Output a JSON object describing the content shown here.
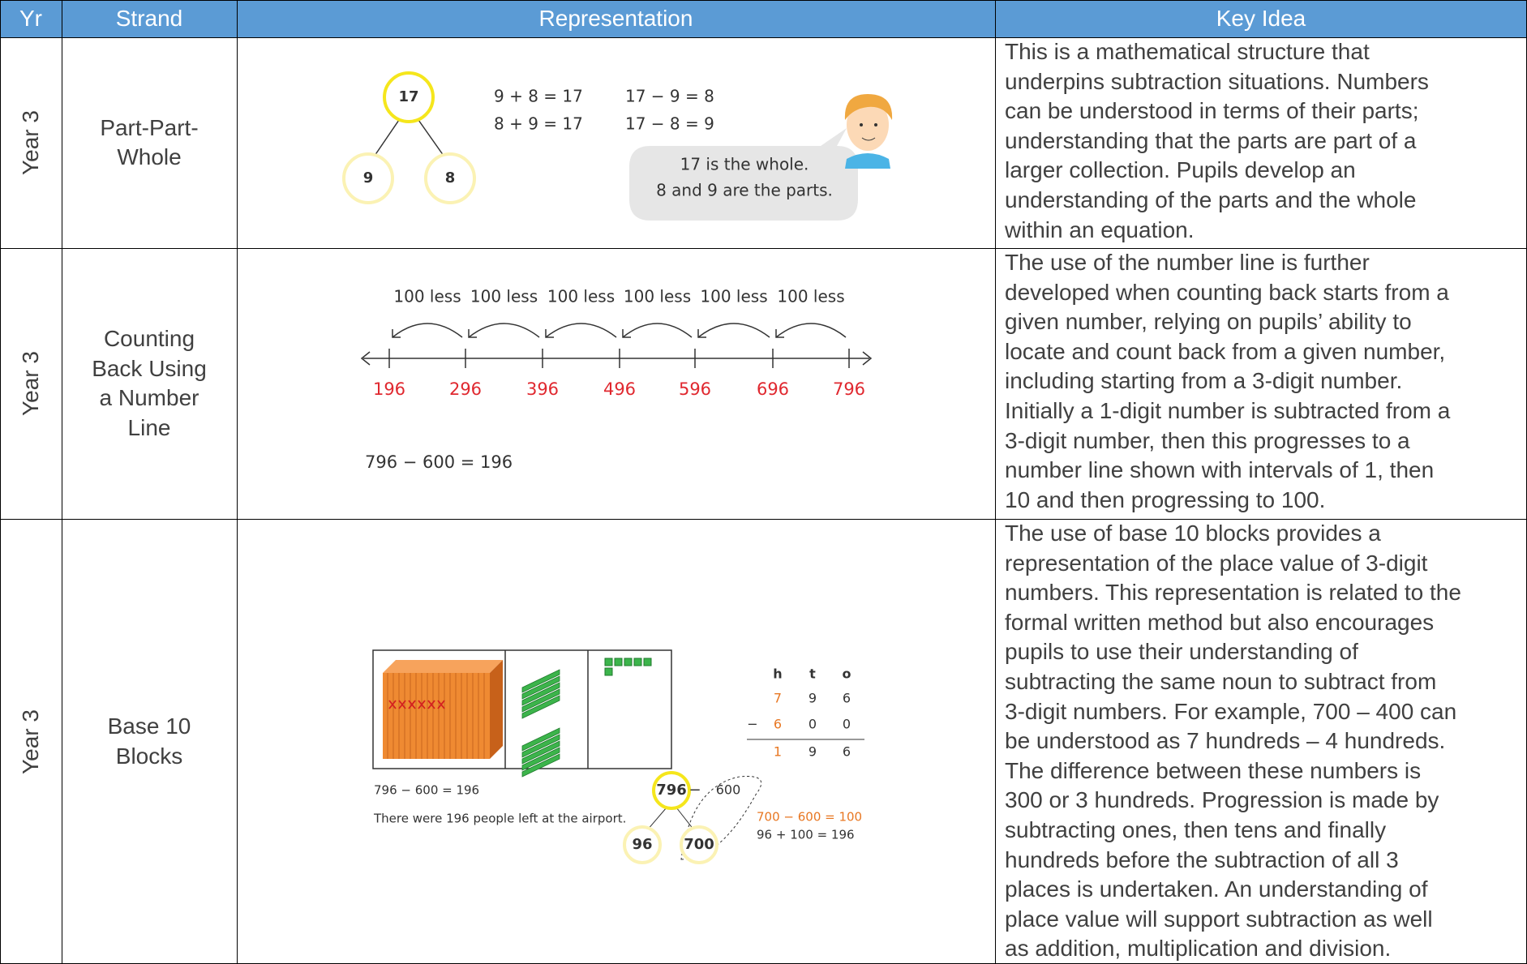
{
  "header": {
    "columns": [
      "Yr",
      "Strand",
      "Representation",
      "Key Idea"
    ]
  },
  "rows": [
    {
      "year": "Year 3",
      "strand": [
        "Part-Part-",
        "Whole"
      ],
      "representation": {
        "whole": "17",
        "parts": [
          "9",
          "8"
        ],
        "equations": [
          "9 + 8 = 17",
          "8 + 9 = 17",
          "17 − 9 = 8",
          "17 − 8 = 9"
        ],
        "speech": [
          "17 is the whole.",
          "8 and 9 are the parts."
        ]
      },
      "key_idea": [
        "This is a mathematical structure that",
        "underpins subtraction situations. Numbers",
        "can be understood in terms of their parts;",
        "understanding that the parts are part of a",
        "larger collection. Pupils develop an",
        "understanding of the parts and the whole",
        "within an equation."
      ]
    },
    {
      "year": "Year 3",
      "strand": [
        "Counting",
        "Back Using",
        "a Number",
        "Line"
      ],
      "representation": {
        "jumps": [
          "100 less",
          "100 less",
          "100 less",
          "100 less",
          "100 less",
          "100 less"
        ],
        "numbers": [
          "196",
          "296",
          "396",
          "496",
          "596",
          "696",
          "796"
        ],
        "equation": "796 − 600 = 196"
      },
      "key_idea": [
        "The use of the number line is further",
        "developed when counting back starts from a",
        "given number, relying on pupils’ ability to",
        "locate and count back from a given number,",
        "including starting from a 3-digit number.",
        "Initially a 1-digit number is subtracted from a",
        "3-digit number, then this progresses to a",
        "number line shown with intervals of 1, then",
        "10 and then progressing to 100."
      ]
    },
    {
      "year": "Year 3",
      "strand": [
        "Base 10",
        "Blocks"
      ],
      "representation": {
        "columns": [
          "h",
          "t",
          "o"
        ],
        "digits": [
          [
            "7",
            "9",
            "6"
          ],
          [
            "6",
            "0",
            "0"
          ],
          [
            "1",
            "9",
            "6"
          ]
        ],
        "operator": "−",
        "equation": "796 − 600 = 196",
        "sentence": "There were 196 people left at the airport.",
        "tree": {
          "whole": "796",
          "minus": "−",
          "subtract": "600",
          "parts": [
            "96",
            "700"
          ]
        },
        "steps": [
          "700 − 600 = 100",
          "96 + 100 = 196"
        ]
      },
      "key_idea": [
        "The use of base 10 blocks provides a",
        "representation of the place value of 3-digit",
        "numbers. This representation is related to the",
        "formal written method but also encourages",
        "pupils to use their understanding of",
        "subtracting the same noun to subtract from",
        "3-digit numbers. For example, 700 – 400 can",
        "be understood as 7 hundreds – 4 hundreds.",
        "The difference between these numbers is",
        "300 or 3 hundreds. Progression is made by",
        "subtracting ones, then tens and finally",
        "hundreds before the subtraction of all 3",
        "places is undertaken. An understanding of",
        "place value will support subtraction as well",
        "as addition, multiplication and division."
      ]
    }
  ]
}
